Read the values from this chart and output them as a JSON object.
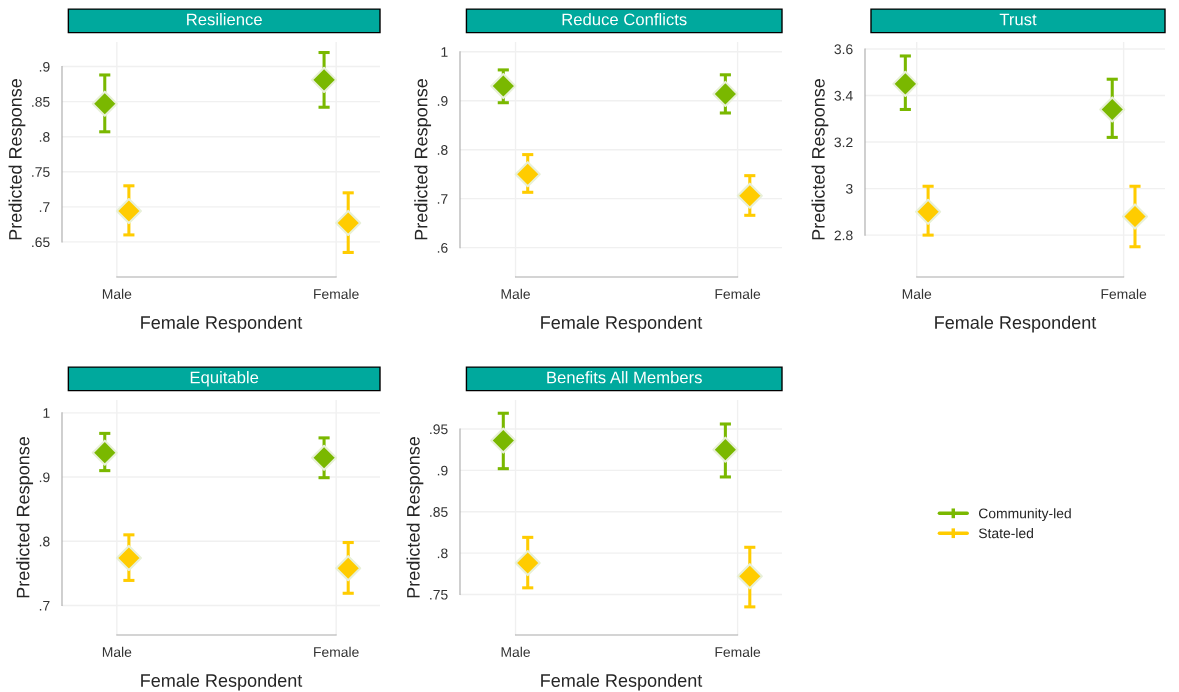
{
  "chart_data": [
    {
      "type": "scatter",
      "title": "Resilience",
      "xlabel": "Female Respondent",
      "ylabel": "Predicted Response",
      "categories": [
        "Male",
        "Female"
      ],
      "ylim": [
        0.6,
        0.935
      ],
      "yticks": [
        {
          "value": 0.65,
          "label": ".65"
        },
        {
          "value": 0.7,
          "label": ".7"
        },
        {
          "value": 0.75,
          "label": ".75"
        },
        {
          "value": 0.8,
          "label": ".8"
        },
        {
          "value": 0.85,
          "label": ".85"
        },
        {
          "value": 0.9,
          "label": ".9"
        }
      ],
      "grid": true,
      "marker": "diamond",
      "legend": false,
      "series": [
        {
          "color": "#7ab800",
          "values": [
            0.847,
            0.881
          ],
          "errors": [
            [
              0.807,
              0.888
            ],
            [
              0.842,
              0.92
            ]
          ]
        },
        {
          "color": "#ffcc00",
          "values": [
            0.694,
            0.677
          ],
          "errors": [
            [
              0.66,
              0.73
            ],
            [
              0.635,
              0.72
            ]
          ]
        }
      ]
    },
    {
      "type": "scatter",
      "title": "Reduce Conflicts",
      "xlabel": "Female Respondent",
      "ylabel": "Predicted Response",
      "categories": [
        "Male",
        "Female"
      ],
      "ylim": [
        0.54,
        1.02
      ],
      "yticks": [
        {
          "value": 0.6,
          "label": ".6"
        },
        {
          "value": 0.7,
          "label": ".7"
        },
        {
          "value": 0.8,
          "label": ".8"
        },
        {
          "value": 0.9,
          "label": ".9"
        },
        1
      ],
      "grid": true,
      "marker": "diamond",
      "legend": false,
      "series": [
        {
          "color": "#7ab800",
          "values": [
            0.93,
            0.914
          ],
          "errors": [
            [
              0.896,
              0.963
            ],
            [
              0.875,
              0.953
            ]
          ]
        },
        {
          "color": "#ffcc00",
          "values": [
            0.75,
            0.706
          ],
          "errors": [
            [
              0.713,
              0.79
            ],
            [
              0.666,
              0.747
            ]
          ]
        }
      ]
    },
    {
      "type": "scatter",
      "title": "Trust",
      "xlabel": "Female Respondent",
      "ylabel": "Predicted Response",
      "categories": [
        "Male",
        "Female"
      ],
      "ylim": [
        2.62,
        3.63
      ],
      "yticks": [
        2.8,
        3,
        3.2,
        3.4,
        3.6
      ],
      "grid": true,
      "marker": "diamond",
      "legend": false,
      "series": [
        {
          "color": "#7ab800",
          "values": [
            3.45,
            3.34
          ],
          "errors": [
            [
              3.34,
              3.57
            ],
            [
              3.22,
              3.47
            ]
          ]
        },
        {
          "color": "#ffcc00",
          "values": [
            2.9,
            2.88
          ],
          "errors": [
            [
              2.8,
              3.01
            ],
            [
              2.75,
              3.01
            ]
          ]
        }
      ]
    },
    {
      "type": "scatter",
      "title": "Equitable",
      "xlabel": "Female Respondent",
      "ylabel": "Predicted Response",
      "categories": [
        "Male",
        "Female"
      ],
      "ylim": [
        0.654,
        1.02
      ],
      "yticks": [
        {
          "value": 0.7,
          "label": ".7"
        },
        {
          "value": 0.8,
          "label": ".8"
        },
        {
          "value": 0.9,
          "label": ".9"
        },
        1
      ],
      "grid": true,
      "marker": "diamond",
      "legend": false,
      "series": [
        {
          "color": "#7ab800",
          "values": [
            0.938,
            0.93
          ],
          "errors": [
            [
              0.91,
              0.968
            ],
            [
              0.899,
              0.961
            ]
          ]
        },
        {
          "color": "#ffcc00",
          "values": [
            0.774,
            0.758
          ],
          "errors": [
            [
              0.739,
              0.81
            ],
            [
              0.719,
              0.798
            ]
          ]
        }
      ]
    },
    {
      "type": "scatter",
      "title": "Benefits All Members",
      "xlabel": "Female Respondent",
      "ylabel": "Predicted Response",
      "categories": [
        "Male",
        "Female"
      ],
      "ylim": [
        0.701,
        0.985
      ],
      "yticks": [
        {
          "value": 0.75,
          "label": ".75"
        },
        {
          "value": 0.8,
          "label": ".8"
        },
        {
          "value": 0.85,
          "label": ".85"
        },
        {
          "value": 0.9,
          "label": ".9"
        },
        {
          "value": 0.95,
          "label": ".95"
        }
      ],
      "grid": true,
      "marker": "diamond",
      "legend": "right",
      "series": [
        {
          "name": "Community-led",
          "color": "#7ab800",
          "values": [
            0.936,
            0.925
          ],
          "errors": [
            [
              0.902,
              0.969
            ],
            [
              0.892,
              0.956
            ]
          ]
        },
        {
          "name": "State-led",
          "color": "#ffcc00",
          "values": [
            0.788,
            0.772
          ],
          "errors": [
            [
              0.758,
              0.819
            ],
            [
              0.735,
              0.807
            ]
          ]
        }
      ]
    }
  ]
}
